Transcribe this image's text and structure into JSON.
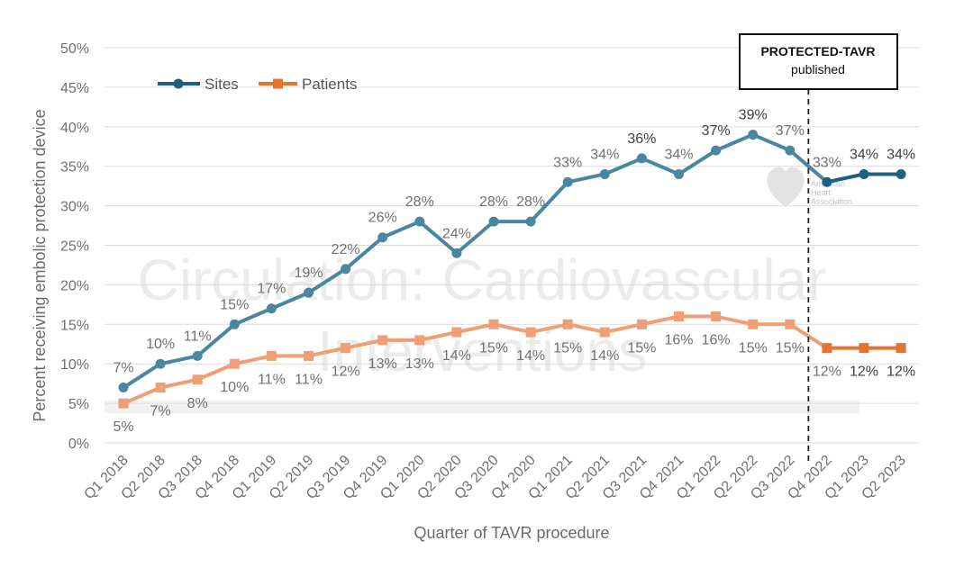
{
  "chart_data": {
    "type": "line",
    "categories": [
      "Q1 2018",
      "Q2 2018",
      "Q3 2018",
      "Q4 2018",
      "Q1 2019",
      "Q2 2019",
      "Q3 2019",
      "Q4 2019",
      "Q1 2020",
      "Q2 2020",
      "Q3 2020",
      "Q4 2020",
      "Q1 2021",
      "Q2 2021",
      "Q3 2021",
      "Q4 2021",
      "Q1 2022",
      "Q2 2022",
      "Q3 2022",
      "Q4 2022",
      "Q1 2023",
      "Q2 2023"
    ],
    "series": [
      {
        "name": "Sites",
        "color": "#4a86a0",
        "color_after": "#1f5f80",
        "marker": "circle",
        "values": [
          7,
          10,
          11,
          15,
          17,
          19,
          22,
          26,
          28,
          24,
          28,
          28,
          33,
          34,
          36,
          34,
          37,
          39,
          37,
          33,
          34,
          34
        ],
        "labels": [
          "7%",
          "10%",
          "11%",
          "15%",
          "17%",
          "19%",
          "22%",
          "26%",
          "28%",
          "24%",
          "28%",
          "28%",
          "33%",
          "34%",
          "36%",
          "34%",
          "37%",
          "39%",
          "37%",
          "33%",
          "34%",
          "34%"
        ]
      },
      {
        "name": "Patients",
        "color": "#ee9f74",
        "color_after": "#e8732e",
        "marker": "square",
        "values": [
          5,
          7,
          8,
          10,
          11,
          11,
          12,
          13,
          13,
          14,
          15,
          14,
          15,
          14,
          15,
          16,
          16,
          15,
          15,
          12,
          12,
          12
        ],
        "labels": [
          "5%",
          "7%",
          "8%",
          "10%",
          "11%",
          "11%",
          "12%",
          "13%",
          "13%",
          "14%",
          "15%",
          "14%",
          "15%",
          "14%",
          "15%",
          "16%",
          "16%",
          "15%",
          "15%",
          "12%",
          "12%",
          "12%"
        ]
      }
    ],
    "title": "",
    "xlabel": "Quarter of TAVR procedure",
    "ylabel": "Percent receiving embolic protection device",
    "ylim": [
      0,
      50
    ],
    "yticks": [
      "0%",
      "5%",
      "10%",
      "15%",
      "20%",
      "25%",
      "30%",
      "35%",
      "40%",
      "45%",
      "50%"
    ],
    "grid": true,
    "legend": "top-left",
    "annotation": {
      "line1": "PROTECTED-TAVR",
      "line2": "published",
      "between": [
        "Q3 2022",
        "Q4 2022"
      ]
    },
    "watermark": {
      "line1": "Circulation: Cardiovascular",
      "line2": "Interventions"
    },
    "logo_text": [
      "American",
      "Heart",
      "Association."
    ]
  }
}
